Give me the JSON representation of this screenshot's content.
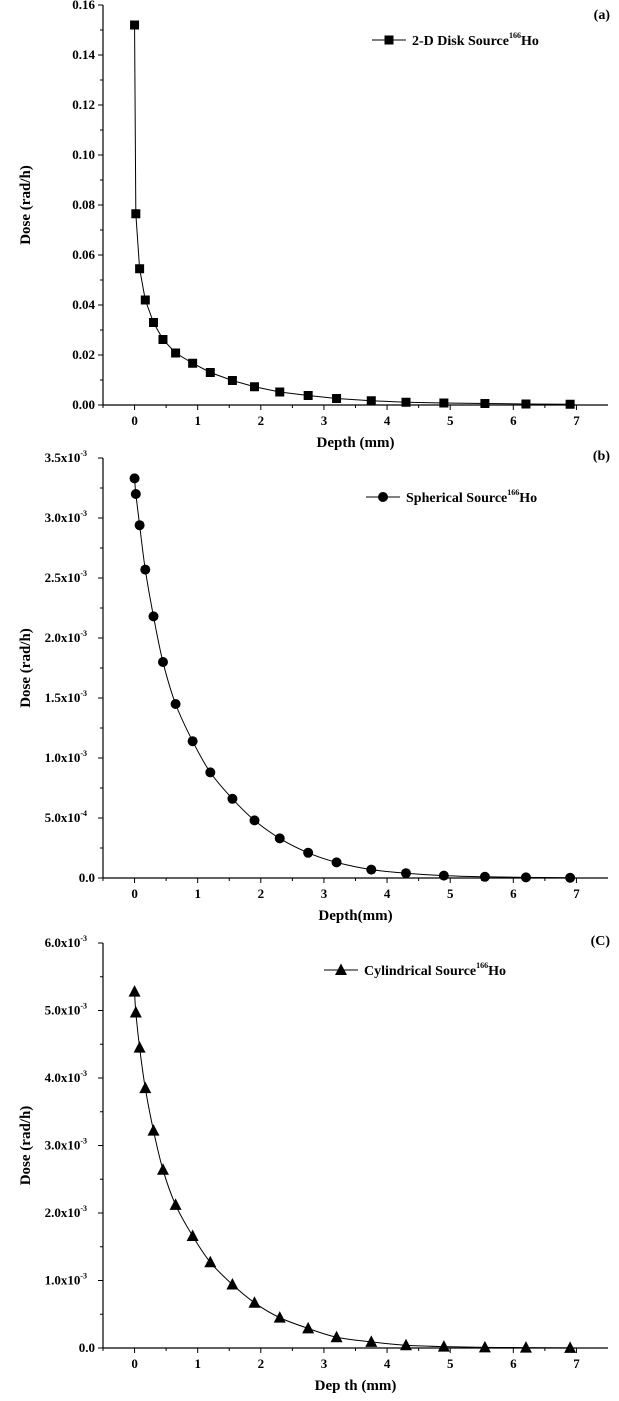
{
  "chart_data": [
    {
      "type": "line",
      "panel_label": "(a)",
      "xlabel": "Depth (mm)",
      "ylabel": "Dose (rad/h)",
      "xlim": [
        -0.5,
        7.5
      ],
      "ylim": [
        0,
        0.16
      ],
      "x_ticks": [
        "0",
        "1",
        "2",
        "3",
        "4",
        "5",
        "6",
        "7"
      ],
      "y_ticks": [
        "0.00",
        "0.02",
        "0.04",
        "0.06",
        "0.08",
        "0.10",
        "0.12",
        "0.14",
        "0.16"
      ],
      "grid": false,
      "legend_position": "top-right",
      "series": [
        {
          "name": "2-D Disk Source",
          "name_sup": "166",
          "name_suffix": "Ho",
          "marker": "square",
          "x": [
            0,
            0.02,
            0.08,
            0.17,
            0.3,
            0.45,
            0.65,
            0.92,
            1.2,
            1.55,
            1.9,
            2.3,
            2.75,
            3.2,
            3.75,
            4.3,
            4.9,
            5.55,
            6.2,
            6.9
          ],
          "y": [
            0.152,
            0.0765,
            0.0545,
            0.042,
            0.033,
            0.0262,
            0.0208,
            0.0167,
            0.013,
            0.0098,
            0.0073,
            0.0052,
            0.0038,
            0.0026,
            0.0017,
            0.0011,
            0.0008,
            0.0006,
            0.0004,
            0.0003
          ]
        }
      ]
    },
    {
      "type": "line",
      "panel_label": "(b)",
      "xlabel": "Depth(mm)",
      "ylabel": "Dose (rad/h)",
      "xlim": [
        -0.5,
        7.5
      ],
      "ylim": [
        0,
        0.0035
      ],
      "x_ticks": [
        "0",
        "1",
        "2",
        "3",
        "4",
        "5",
        "6",
        "7"
      ],
      "y_ticks": [
        {
          "mant": "0.0",
          "exp": ""
        },
        {
          "mant": "5.0x10",
          "exp": "-4"
        },
        {
          "mant": "1.0x10",
          "exp": "-3"
        },
        {
          "mant": "1.5x10",
          "exp": "-3"
        },
        {
          "mant": "2.0x10",
          "exp": "-3"
        },
        {
          "mant": "2.5x10",
          "exp": "-3"
        },
        {
          "mant": "3.0x10",
          "exp": "-3"
        },
        {
          "mant": "3.5x10",
          "exp": "-3"
        }
      ],
      "grid": false,
      "legend_position": "top-right",
      "series": [
        {
          "name": "Spherical Source",
          "name_sup": "166",
          "name_suffix": "Ho",
          "marker": "circle",
          "x": [
            0,
            0.02,
            0.08,
            0.17,
            0.3,
            0.45,
            0.65,
            0.92,
            1.2,
            1.55,
            1.9,
            2.3,
            2.75,
            3.2,
            3.75,
            4.3,
            4.9,
            5.55,
            6.2,
            6.9
          ],
          "y": [
            0.00333,
            0.0032,
            0.00294,
            0.00257,
            0.00218,
            0.0018,
            0.00145,
            0.00114,
            0.00088,
            0.00066,
            0.00048,
            0.00033,
            0.00021,
            0.00013,
            7e-05,
            4e-05,
            2e-05,
            1e-05,
            5e-06,
            2e-06
          ]
        }
      ]
    },
    {
      "type": "line",
      "panel_label": "(C)",
      "xlabel": "Dep th (mm)",
      "ylabel": "Dose (rad/h)",
      "xlim": [
        -0.5,
        7.5
      ],
      "ylim": [
        0,
        0.006
      ],
      "x_ticks": [
        "0",
        "1",
        "2",
        "3",
        "4",
        "5",
        "6",
        "7"
      ],
      "y_ticks": [
        {
          "mant": "0.0",
          "exp": ""
        },
        {
          "mant": "1.0x10",
          "exp": "-3"
        },
        {
          "mant": "2.0x10",
          "exp": "-3"
        },
        {
          "mant": "3.0x10",
          "exp": "-3"
        },
        {
          "mant": "4.0x10",
          "exp": "-3"
        },
        {
          "mant": "5.0x10",
          "exp": "-3"
        },
        {
          "mant": "6.0x10",
          "exp": "-3"
        }
      ],
      "grid": false,
      "legend_position": "top-right",
      "series": [
        {
          "name": "Cylindrical Source",
          "name_sup": "166",
          "name_suffix": "Ho",
          "marker": "triangle",
          "x": [
            0,
            0.02,
            0.08,
            0.17,
            0.3,
            0.45,
            0.65,
            0.92,
            1.2,
            1.55,
            1.9,
            2.3,
            2.75,
            3.2,
            3.75,
            4.3,
            4.9,
            5.55,
            6.2,
            6.9
          ],
          "y": [
            0.00528,
            0.00497,
            0.00445,
            0.00385,
            0.00322,
            0.00264,
            0.00212,
            0.00166,
            0.00127,
            0.00094,
            0.00067,
            0.00045,
            0.00029,
            0.00016,
            9e-05,
            4e-05,
            2e-05,
            1e-05,
            5e-06,
            2e-06
          ]
        }
      ]
    }
  ]
}
